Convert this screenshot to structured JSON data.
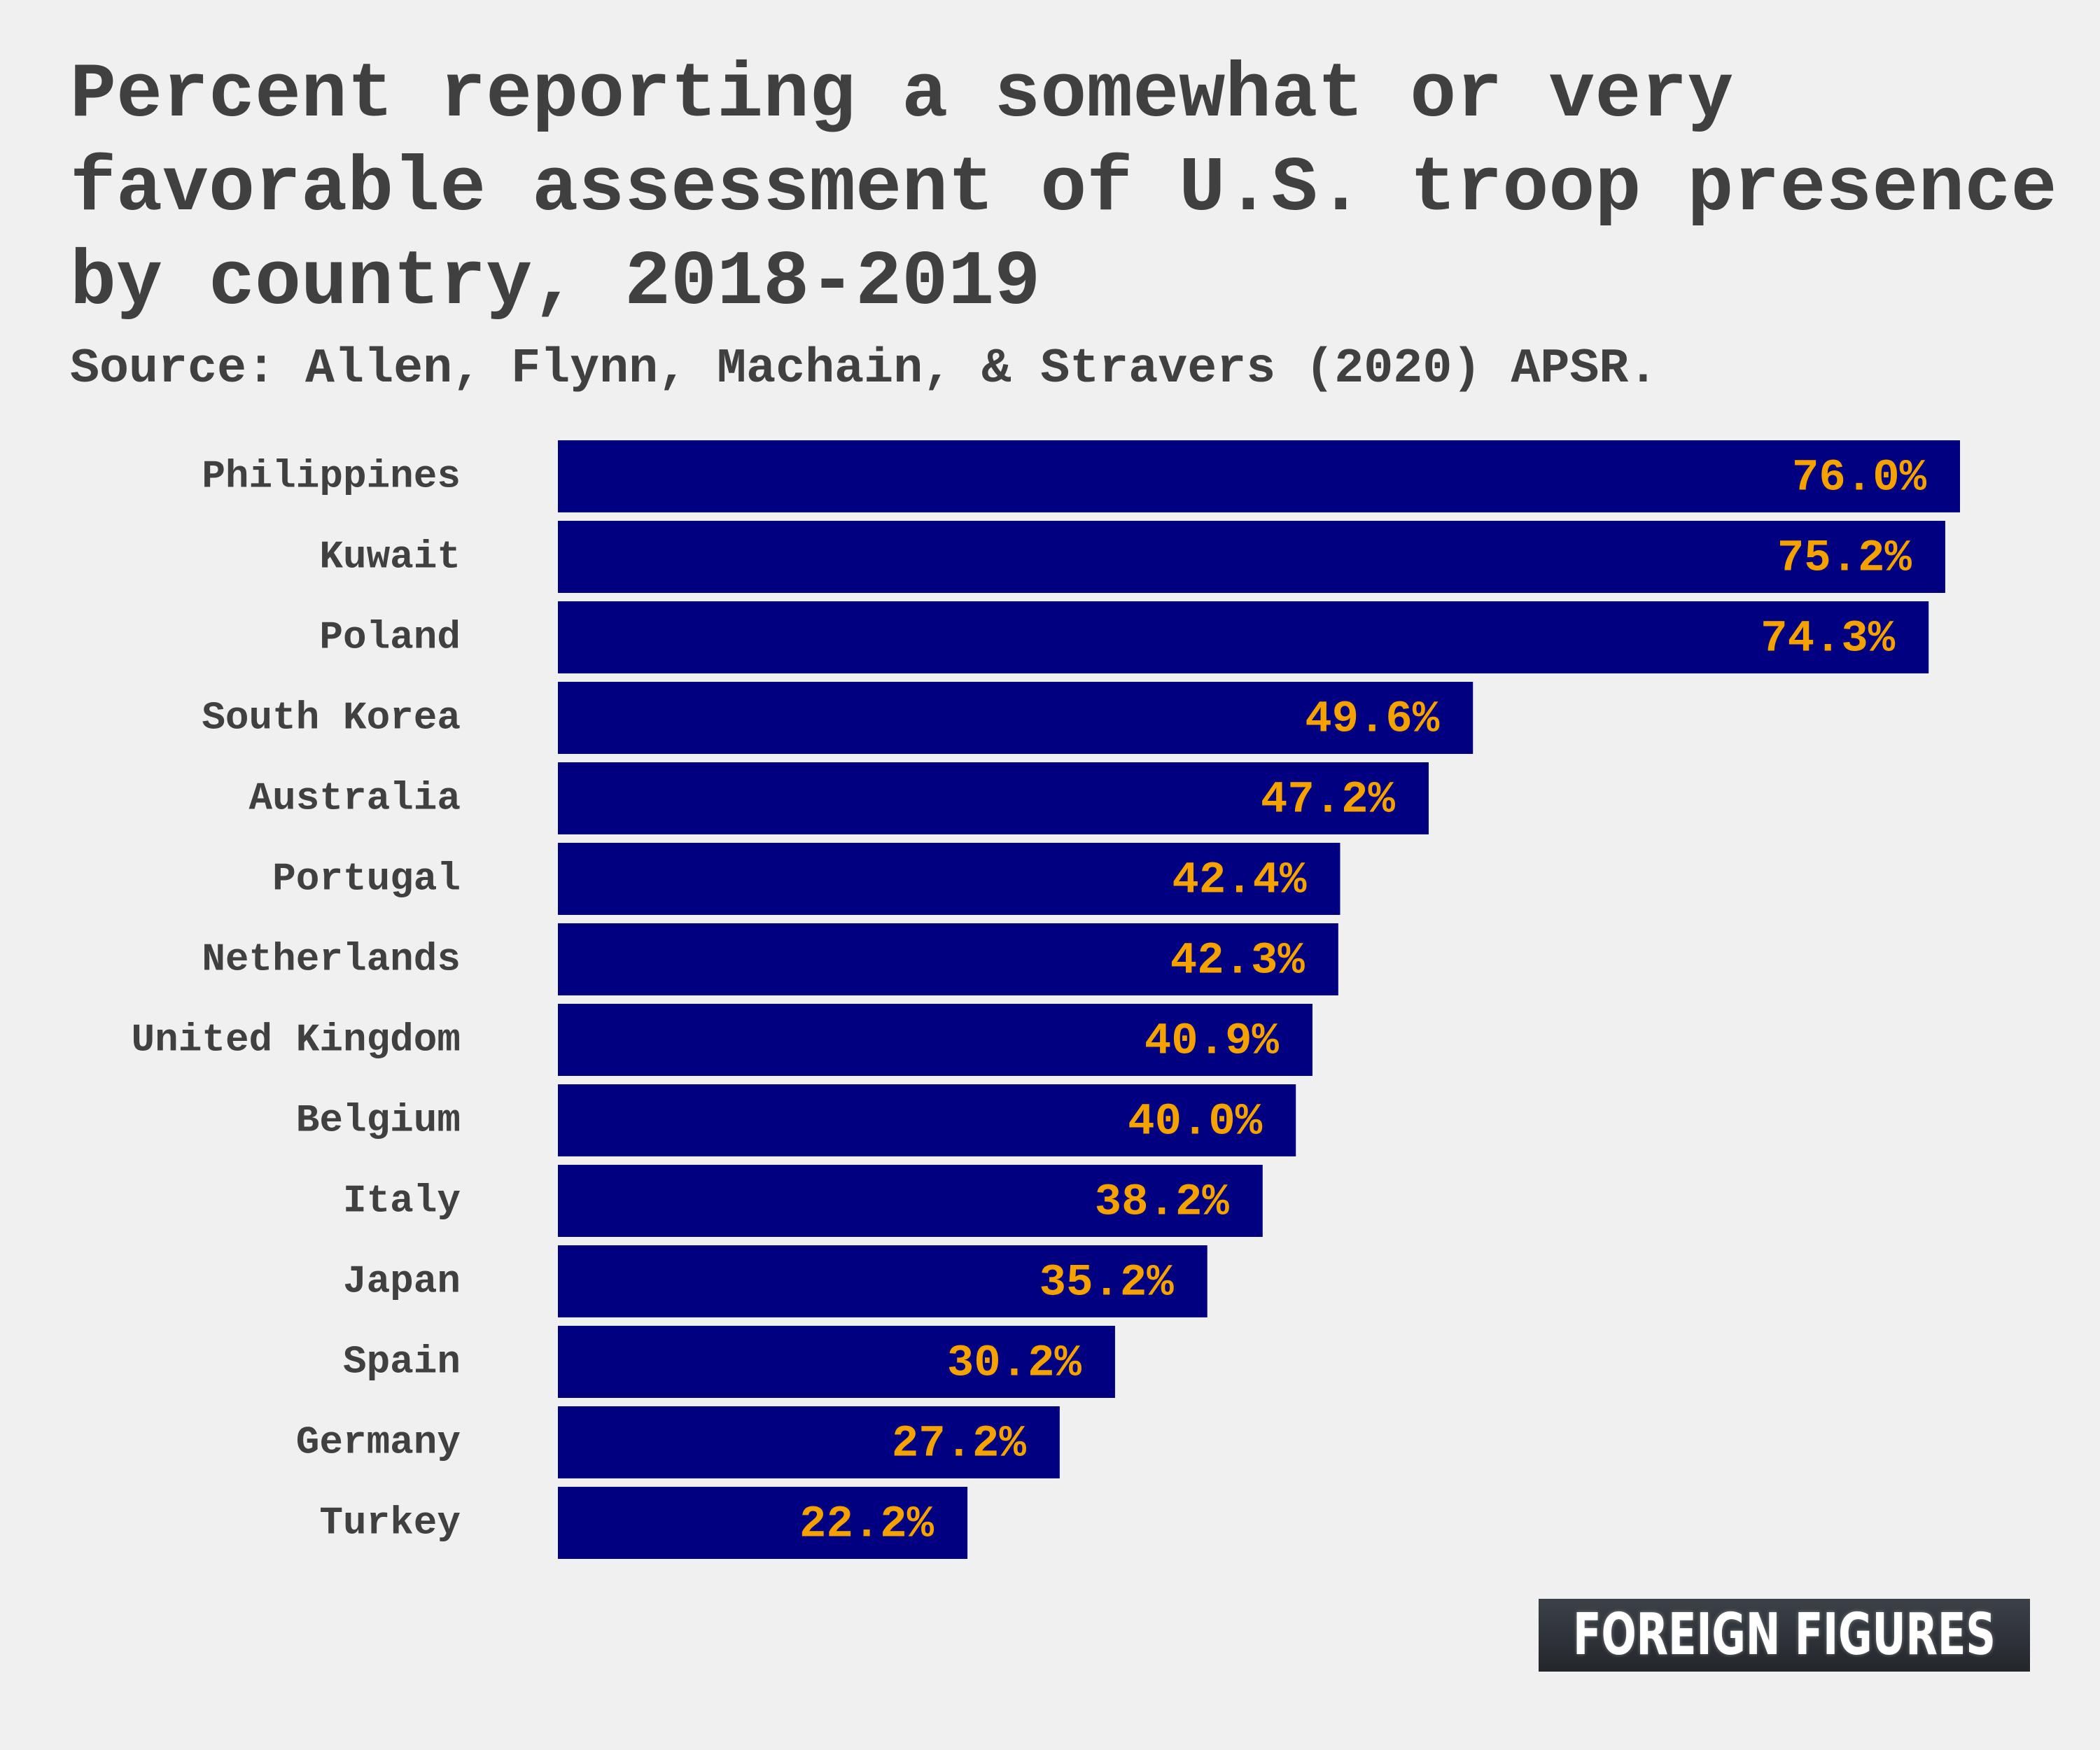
{
  "header": {
    "title": "Percent reporting a somewhat or very favorable assessment of U.S. troop presence by country, 2018-2019",
    "source": "Source: Allen, Flynn, Machain, & Stravers (2020) APSR."
  },
  "brand": {
    "logo_text": "FOREIGN FIGURES"
  },
  "colors": {
    "background": "#f0f0f0",
    "bar": "#000080",
    "value_label": "#f5a100",
    "text": "#404040"
  },
  "chart_data": {
    "type": "bar",
    "orientation": "horizontal",
    "title": "Percent reporting a somewhat or very favorable assessment of U.S. troop presence by country, 2018-2019",
    "subtitle": "Source: Allen, Flynn, Machain, & Stravers (2020) APSR.",
    "categories": [
      "Philippines",
      "Kuwait",
      "Poland",
      "South Korea",
      "Australia",
      "Portugal",
      "Netherlands",
      "United Kingdom",
      "Belgium",
      "Italy",
      "Japan",
      "Spain",
      "Germany",
      "Turkey"
    ],
    "values": [
      76.0,
      75.2,
      74.3,
      49.6,
      47.2,
      42.4,
      42.3,
      40.9,
      40.0,
      38.2,
      35.2,
      30.2,
      27.2,
      22.2
    ],
    "value_labels": [
      "76.0%",
      "75.2%",
      "74.3%",
      "49.6%",
      "47.2%",
      "42.4%",
      "42.3%",
      "40.9%",
      "40.0%",
      "38.2%",
      "35.2%",
      "30.2%",
      "27.2%",
      "22.2%"
    ],
    "xlim": [
      0,
      76
    ],
    "grid": false,
    "legend": "none"
  }
}
